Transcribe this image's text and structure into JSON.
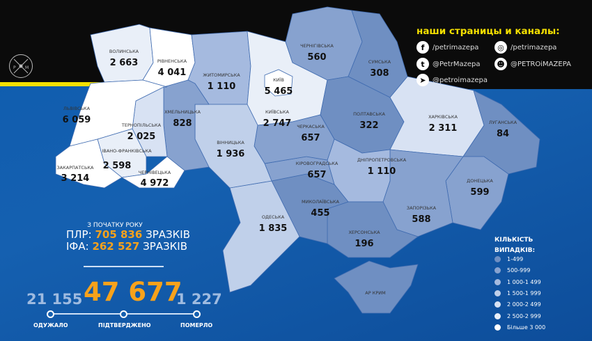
{
  "social": {
    "title": "наши страницы и каналы:",
    "links": [
      {
        "icon": "facebook-icon",
        "glyph": "f",
        "text": "/petrimazepa"
      },
      {
        "icon": "instagram-icon",
        "glyph": "◎",
        "text": "/petrimazepa"
      },
      {
        "icon": "twitter-icon",
        "glyph": "t",
        "text": "@PetrMazepa"
      },
      {
        "icon": "reddit-icon",
        "glyph": "☻",
        "text": "@PETROiMAZEPA"
      },
      {
        "icon": "telegram-icon",
        "glyph": "➤",
        "text": "@petroimazepa"
      }
    ]
  },
  "logo": {
    "letters": "P M"
  },
  "tests": {
    "since": "З ПОЧАТКУ РОКУ",
    "pcr_label": "ПЛР:",
    "pcr_value": "705 836",
    "ifa_label": "ІФА:",
    "ifa_value": "262 527",
    "unit": "ЗРАЗКІВ"
  },
  "totals": {
    "recovered": "21 155",
    "recovered_label": "ОДУЖАЛО",
    "confirmed": "47 677",
    "confirmed_label": "ПІДТВЕРДЖЕНО",
    "died": "1 227",
    "died_label": "ПОМЕРЛО"
  },
  "legend": {
    "title_1": "КІЛЬКІСТЬ",
    "title_2": "ВИПАДКІВ:",
    "items": [
      {
        "label": "1-499",
        "color": "#6f8fc2"
      },
      {
        "label": "500-999",
        "color": "#87a2cf"
      },
      {
        "label": "1 000-1 499",
        "color": "#a5badf"
      },
      {
        "label": "1 500-1 999",
        "color": "#c0d0ea"
      },
      {
        "label": "2 000-2 499",
        "color": "#d8e2f3"
      },
      {
        "label": "2 500-2 999",
        "color": "#e9eff8"
      },
      {
        "label": "Більше 3 000",
        "color": "#ffffff"
      }
    ]
  },
  "regions": [
    {
      "name": "ВОЛИНСЬКА",
      "value": "2 663",
      "color": "#e9eff8"
    },
    {
      "name": "РІВНЕНСЬКА",
      "value": "4 041",
      "color": "#ffffff"
    },
    {
      "name": "ЖИТОМИРСЬКА",
      "value": "1 110",
      "color": "#a5badf"
    },
    {
      "name": "КИЇВСЬКА",
      "value": "2 747",
      "color": "#e9eff8"
    },
    {
      "name": "КИЇВ",
      "value": "5 465",
      "color": "#ffffff"
    },
    {
      "name": "ЧЕРНІГІВСЬКА",
      "value": "560",
      "color": "#87a2cf"
    },
    {
      "name": "СУМСЬКА",
      "value": "308",
      "color": "#6f8fc2"
    },
    {
      "name": "ПОЛТАВСЬКА",
      "value": "322",
      "color": "#6f8fc2"
    },
    {
      "name": "ХАРКІВСЬКА",
      "value": "2 311",
      "color": "#d8e2f3"
    },
    {
      "name": "ЛУГАНСЬКА",
      "value": "84",
      "color": "#6f8fc2"
    },
    {
      "name": "ДОНЕЦЬКА",
      "value": "599",
      "color": "#87a2cf"
    },
    {
      "name": "ЗАПОРІЗЬКА",
      "value": "588",
      "color": "#87a2cf"
    },
    {
      "name": "ДНІПРОПЕТРОВСЬКА",
      "value": "1 110",
      "color": "#a5badf"
    },
    {
      "name": "ХЕРСОНСЬКА",
      "value": "196",
      "color": "#6f8fc2"
    },
    {
      "name": "АР КРИМ",
      "value": "",
      "color": "#6f8fc2"
    },
    {
      "name": "МИКОЛАЇВСЬКА",
      "value": "455",
      "color": "#6f8fc2"
    },
    {
      "name": "ОДЕСЬКА",
      "value": "1 835",
      "color": "#c0d0ea"
    },
    {
      "name": "КІРОВОГРАДСЬКА",
      "value": "657",
      "color": "#87a2cf"
    },
    {
      "name": "ЧЕРКАСЬКА",
      "value": "657",
      "color": "#87a2cf"
    },
    {
      "name": "ВІННИЦЬКА",
      "value": "1 936",
      "color": "#c0d0ea"
    },
    {
      "name": "ХМЕЛЬНИЦЬКА",
      "value": "828",
      "color": "#87a2cf"
    },
    {
      "name": "ТЕРНОПІЛЬСЬКА",
      "value": "2 025",
      "color": "#d8e2f3"
    },
    {
      "name": "ЛЬВІВСЬКА",
      "value": "6 059",
      "color": "#ffffff"
    },
    {
      "name": "ІВАНО-ФРАНКІВСЬКА",
      "value": "2 598",
      "color": "#e9eff8"
    },
    {
      "name": "ЗАКАРПАТСЬКА",
      "value": "3 214",
      "color": "#ffffff"
    },
    {
      "name": "ЧЕРНІВЕЦЬКА",
      "value": "4 972",
      "color": "#ffffff"
    }
  ]
}
